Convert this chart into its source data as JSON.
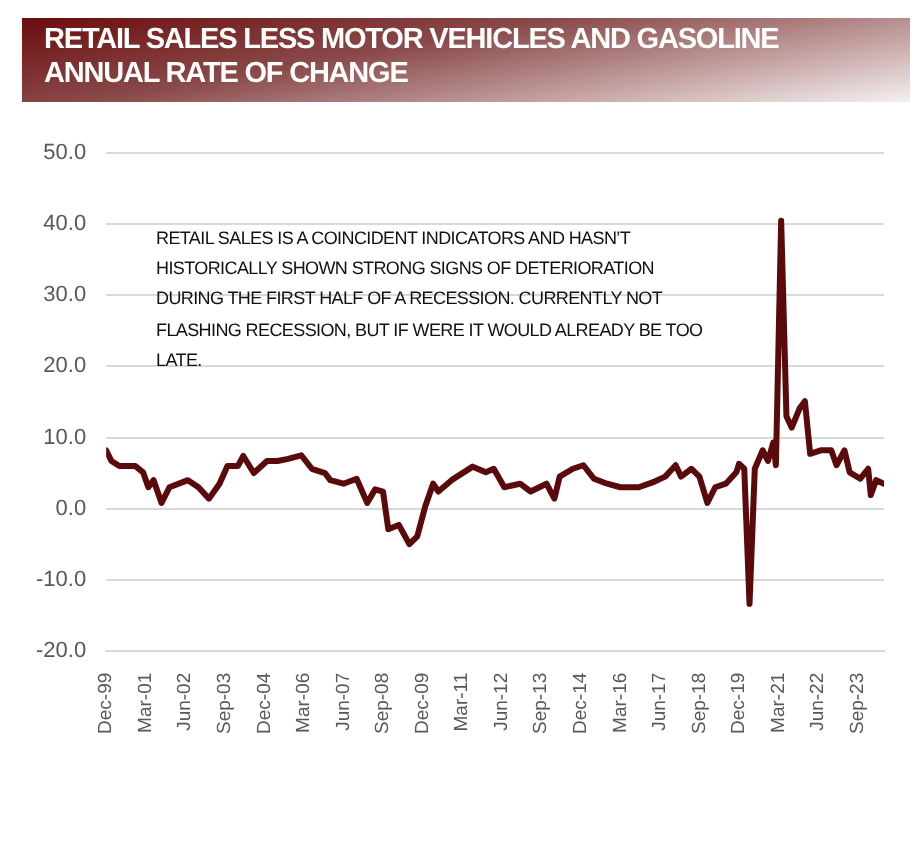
{
  "chart_data": {
    "type": "line",
    "title": "RETAIL SALES LESS MOTOR VEHICLES AND GASOLINE\nANNUAL RATE OF CHANGE",
    "annotations": [
      "RETAIL SALES IS A COINCIDENT INDICATORS AND HASN’T HISTORICALLY SHOWN STRONG SIGNS OF DETERIORATION DURING THE FIRST HALF OF A RECESSION. CURRENTLY NOT FLASHING RECESSION, BUT IF WERE IT WOULD ALREADY BE TOO LATE."
    ],
    "x": [
      "1999-12",
      "2000-02",
      "2000-05",
      "2000-11",
      "2001-02",
      "2001-04",
      "2001-06",
      "2001-09",
      "2001-12",
      "2002-07",
      "2002-11",
      "2003-03",
      "2003-07",
      "2003-10",
      "2004-02",
      "2004-04",
      "2004-08",
      "2005-01",
      "2005-05",
      "2005-09",
      "2006-02",
      "2006-06",
      "2006-11",
      "2007-01",
      "2007-06",
      "2007-11",
      "2008-03",
      "2008-06",
      "2008-09",
      "2008-11",
      "2009-03",
      "2009-07",
      "2009-10",
      "2010-01",
      "2010-04",
      "2010-06",
      "2010-11",
      "2011-07",
      "2011-12",
      "2012-03",
      "2012-07",
      "2013-01",
      "2013-05",
      "2013-11",
      "2014-02",
      "2014-04",
      "2014-09",
      "2015-01",
      "2015-05",
      "2015-10",
      "2016-03",
      "2016-10",
      "2017-04",
      "2017-08",
      "2017-12",
      "2018-02",
      "2018-06",
      "2018-09",
      "2018-12",
      "2019-03",
      "2019-07",
      "2019-11",
      "2019-12",
      "2020-02",
      "2020-04",
      "2020-06",
      "2020-09",
      "2020-11",
      "2021-01",
      "2021-02",
      "2021-04",
      "2021-06",
      "2021-08",
      "2021-11",
      "2022-01",
      "2022-03",
      "2022-07",
      "2022-11",
      "2023-01",
      "2023-04",
      "2023-06",
      "2023-10",
      "2024-01",
      "2024-02",
      "2024-04",
      "2024-07"
    ],
    "series": [
      {
        "color": "#5a0a0a",
        "values": [
          8.2,
          6.7,
          6.0,
          6.0,
          5.1,
          3.0,
          4.0,
          0.8,
          3.0,
          4.0,
          3.0,
          1.4,
          3.5,
          6.0,
          6.0,
          7.4,
          5.0,
          6.7,
          6.7,
          7.0,
          7.5,
          5.6,
          5.0,
          4.0,
          3.5,
          4.2,
          0.8,
          2.7,
          2.4,
          -2.9,
          -2.3,
          -5.0,
          -3.9,
          0.3,
          3.5,
          2.4,
          4.0,
          5.9,
          5.1,
          5.6,
          3.0,
          3.5,
          2.4,
          3.5,
          1.4,
          4.5,
          5.6,
          6.1,
          4.2,
          3.5,
          3.0,
          3.0,
          3.8,
          4.5,
          6.1,
          4.5,
          5.6,
          4.5,
          0.8,
          3.0,
          3.5,
          5.1,
          6.3,
          5.6,
          -13.4,
          5.6,
          8.2,
          6.7,
          9.3,
          6.1,
          40.5,
          13.0,
          11.4,
          14.1,
          15.1,
          7.7,
          8.2,
          8.2,
          6.1,
          8.2,
          5.1,
          4.2,
          5.6,
          1.9,
          4.0,
          3.5
        ]
      }
    ],
    "xlim": [
      "1999-12",
      "2024-07"
    ],
    "xticks": [
      {
        "value": "1999-12",
        "label": "Dec-99"
      },
      {
        "value": "2001-03",
        "label": "Mar-01"
      },
      {
        "value": "2002-06",
        "label": "Jun-02"
      },
      {
        "value": "2003-09",
        "label": "Sep-03"
      },
      {
        "value": "2004-12",
        "label": "Dec-04"
      },
      {
        "value": "2006-03",
        "label": "Mar-06"
      },
      {
        "value": "2007-06",
        "label": "Jun-07"
      },
      {
        "value": "2008-09",
        "label": "Sep-08"
      },
      {
        "value": "2009-12",
        "label": "Dec-09"
      },
      {
        "value": "2011-03",
        "label": "Mar-11"
      },
      {
        "value": "2012-06",
        "label": "Jun-12"
      },
      {
        "value": "2013-09",
        "label": "Sep-13"
      },
      {
        "value": "2014-12",
        "label": "Dec-14"
      },
      {
        "value": "2016-03",
        "label": "Mar-16"
      },
      {
        "value": "2017-06",
        "label": "Jun-17"
      },
      {
        "value": "2018-09",
        "label": "Sep-18"
      },
      {
        "value": "2019-12",
        "label": "Dec-19"
      },
      {
        "value": "2021-03",
        "label": "Mar-21"
      },
      {
        "value": "2022-06",
        "label": "Jun-22"
      },
      {
        "value": "2023-09",
        "label": "Sep-23"
      }
    ],
    "ylim": [
      -20,
      50
    ],
    "yticks": [
      {
        "value": -20,
        "label": "-20.0"
      },
      {
        "value": -10,
        "label": "-10.0"
      },
      {
        "value": 0,
        "label": "0.0"
      },
      {
        "value": 10,
        "label": "10.0"
      },
      {
        "value": 20,
        "label": "20.0"
      },
      {
        "value": 30,
        "label": "30.0"
      },
      {
        "value": 40,
        "label": "40.0"
      },
      {
        "value": 50,
        "label": "50.0"
      }
    ],
    "grid": "y",
    "legend": false,
    "marker": "none",
    "line_style": "solid"
  }
}
